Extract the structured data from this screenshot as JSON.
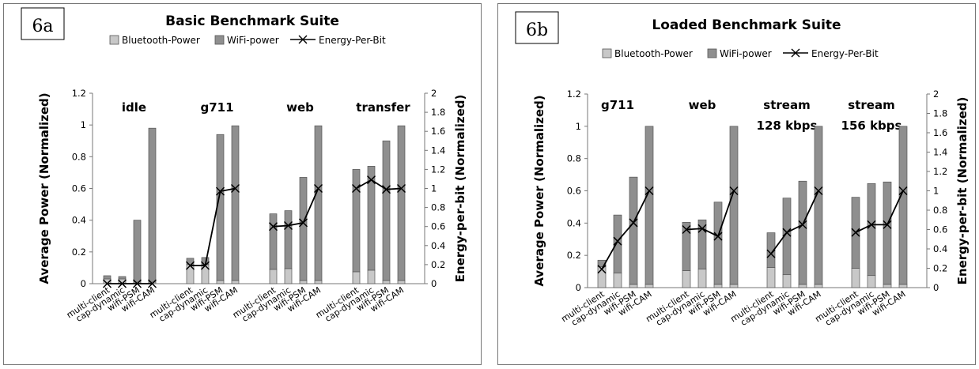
{
  "colors": {
    "bluetooth": "#c8c8c8",
    "wifi": "#8f8f8f",
    "line": "#000000",
    "bar_stroke": "#555555"
  },
  "legend": {
    "bluetooth": "Bluetooth-Power",
    "wifi": "WiFi-power",
    "energy": "Energy-Per-Bit"
  },
  "chart_data": [
    {
      "type": "bar",
      "badge": "6a",
      "title": "Basic Benchmark Suite",
      "ylabel": "Average Power (Normalized)",
      "y2label": "Energy-per-bit (Normalized)",
      "ylim": [
        0,
        1.2
      ],
      "y2lim": [
        0,
        2
      ],
      "yticks": [
        "0",
        "0.2",
        "0.4",
        "0.6",
        "0.8",
        "1",
        "1.2"
      ],
      "y2ticks": [
        "0",
        "0.2",
        "0.4",
        "0.6",
        "0.8",
        "1",
        "1.2",
        "1.4",
        "1.6",
        "1.8",
        "2"
      ],
      "groups": [
        {
          "label": "idle",
          "label2": "",
          "categories": [
            "multi-client",
            "cap-dynamic",
            "wifi-PSM",
            "wifi-CAM"
          ],
          "bluetooth": [
            0.03,
            0.03,
            0.01,
            0.01
          ],
          "wifi": [
            0.02,
            0.015,
            0.39,
            0.97
          ],
          "energy_per_bit": [
            0,
            0,
            0,
            0
          ]
        },
        {
          "label": "g711",
          "label2": "",
          "categories": [
            "multi-client",
            "cap-dynamic",
            "wifi-PSM",
            "wifi-CAM"
          ],
          "bluetooth": [
            0.12,
            0.12,
            0.02,
            0.02
          ],
          "wifi": [
            0.04,
            0.045,
            0.92,
            0.975
          ],
          "energy_per_bit": [
            0.19,
            0.19,
            0.97,
            1.0
          ]
        },
        {
          "label": "web",
          "label2": "",
          "categories": [
            "multi-client",
            "cap-dynamic",
            "wifi-PSM",
            "wifi-CAM"
          ],
          "bluetooth": [
            0.09,
            0.095,
            0.02,
            0.02
          ],
          "wifi": [
            0.35,
            0.365,
            0.65,
            0.975
          ],
          "energy_per_bit": [
            0.6,
            0.61,
            0.64,
            1.0
          ]
        },
        {
          "label": "transfer",
          "label2": "",
          "categories": [
            "multi-client",
            "cap-dynamic",
            "wifi-PSM",
            "wifi-CAM"
          ],
          "bluetooth": [
            0.075,
            0.085,
            0.02,
            0.02
          ],
          "wifi": [
            0.645,
            0.655,
            0.88,
            0.975
          ],
          "energy_per_bit": [
            1.0,
            1.09,
            0.99,
            1.0
          ]
        }
      ]
    },
    {
      "type": "bar",
      "badge": "6b",
      "title": "Loaded Benchmark Suite",
      "ylabel": "Average Power (Normalized)",
      "y2label": "Energy-per-bit (Normalized)",
      "ylim": [
        0,
        1.2
      ],
      "y2lim": [
        0,
        2
      ],
      "yticks": [
        "0",
        "0.2",
        "0.4",
        "0.6",
        "0.8",
        "1",
        "1.2"
      ],
      "y2ticks": [
        "0",
        "0.2",
        "0.4",
        "0.6",
        "0.8",
        "1",
        "1.2",
        "1.4",
        "1.6",
        "1.8",
        "2"
      ],
      "groups": [
        {
          "label": "g711",
          "label2": "",
          "categories": [
            "multi-client",
            "cap-dynamic",
            "wifi-PSM",
            "wifi-CAM"
          ],
          "bluetooth": [
            0.13,
            0.09,
            0.02,
            0.02
          ],
          "wifi": [
            0.04,
            0.36,
            0.665,
            0.98
          ],
          "energy_per_bit": [
            0.19,
            0.48,
            0.67,
            1.0
          ]
        },
        {
          "label": "web",
          "label2": "",
          "categories": [
            "multi-client",
            "cap-dynamic",
            "wifi-PSM",
            "wifi-CAM"
          ],
          "bluetooth": [
            0.105,
            0.115,
            0.02,
            0.02
          ],
          "wifi": [
            0.3,
            0.305,
            0.51,
            0.98
          ],
          "energy_per_bit": [
            0.6,
            0.61,
            0.53,
            1.0
          ]
        },
        {
          "label": "stream",
          "label2": "128 kbps",
          "categories": [
            "multi-client",
            "cap-dynamic",
            "wifi-PSM",
            "wifi-CAM"
          ],
          "bluetooth": [
            0.125,
            0.08,
            0.02,
            0.02
          ],
          "wifi": [
            0.215,
            0.475,
            0.64,
            0.98
          ],
          "energy_per_bit": [
            0.35,
            0.57,
            0.65,
            1.0
          ]
        },
        {
          "label": "stream",
          "label2": "156 kbps",
          "categories": [
            "multi-client",
            "cap-dynamic",
            "wifi-PSM",
            "wifi-CAM"
          ],
          "bluetooth": [
            0.12,
            0.075,
            0.02,
            0.02
          ],
          "wifi": [
            0.44,
            0.57,
            0.635,
            0.98
          ],
          "energy_per_bit": [
            0.57,
            0.65,
            0.65,
            1.0
          ]
        }
      ]
    }
  ]
}
